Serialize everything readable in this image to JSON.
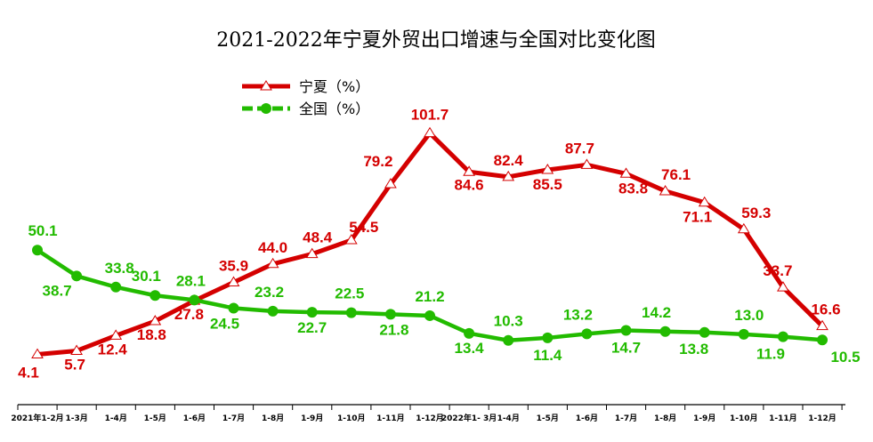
{
  "chart_data": {
    "type": "line",
    "title": "2021-2022年宁夏外贸出口增速与全国对比变化图",
    "categories": [
      "2021年1-2月",
      "1-3月",
      "1-4月",
      "1-5月",
      "1-6月",
      "1-7月",
      "1-8月",
      "1-9月",
      "1-10月",
      "1-11月",
      "1-12月",
      "2022年1- 3月",
      "1-4月",
      "1-5月",
      "1-6月",
      "1-7月",
      "1-8月",
      "1-9月",
      "1-10月",
      "1-11月",
      "1-12月"
    ],
    "series": [
      {
        "name": "宁夏（%）",
        "color": "#d40000",
        "marker": "triangle",
        "values": [
          4.1,
          5.7,
          12.4,
          18.8,
          27.8,
          35.9,
          44.0,
          48.4,
          54.5,
          79.2,
          101.7,
          84.6,
          82.4,
          85.5,
          87.7,
          83.8,
          76.1,
          71.1,
          59.3,
          33.7,
          16.6
        ],
        "labels": [
          "4.1",
          "5.7",
          "12.4",
          "18.8",
          "27.8",
          "35.9",
          "44.0",
          "48.4",
          "54.5",
          "79.2",
          "101.7",
          "84.6",
          "82.4",
          "85.5",
          "87.7",
          "83.8",
          "76.1",
          "71.1",
          "59.3",
          "33.7",
          "16.6"
        ]
      },
      {
        "name": "全国（%）",
        "color": "#22bb00",
        "marker": "circle",
        "values": [
          50.1,
          38.7,
          33.8,
          30.1,
          28.1,
          24.5,
          23.2,
          22.7,
          22.5,
          21.8,
          21.2,
          13.4,
          10.3,
          11.4,
          13.2,
          14.7,
          14.2,
          13.8,
          13.0,
          11.9,
          10.5
        ],
        "labels": [
          "50.1",
          "38.7",
          "33.8",
          "30.1",
          "28.1",
          "24.5",
          "23.2",
          "22.7",
          "22.5",
          "21.8",
          "21.2",
          "13.4",
          "10.3",
          "11.4",
          "13.2",
          "14.7",
          "14.2",
          "13.8",
          "13.0",
          "11.9",
          "10.5"
        ]
      }
    ],
    "xlabel": "",
    "ylabel": "",
    "grid": false,
    "legend_position": "top-left",
    "y_axis_visible": false
  }
}
